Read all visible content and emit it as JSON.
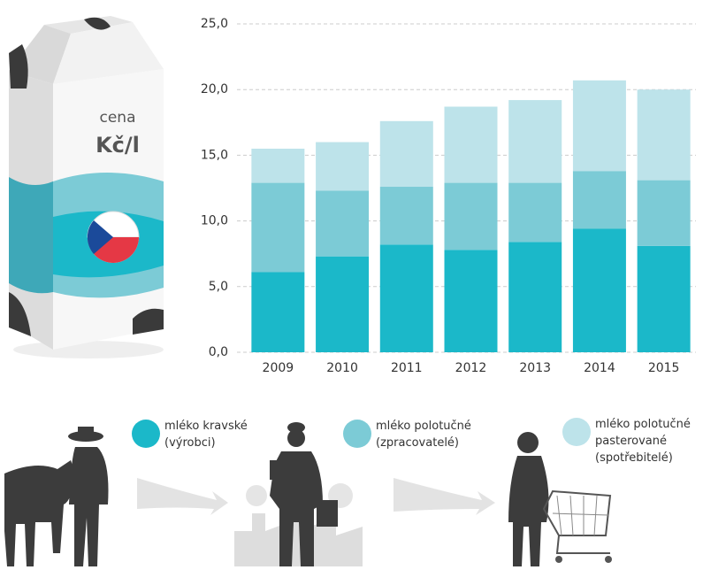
{
  "chart_data": {
    "type": "stacked_bar",
    "unit_top": "cena",
    "unit": "Kč/l",
    "categories": [
      "2009",
      "2010",
      "2011",
      "2012",
      "2013",
      "2014",
      "2015"
    ],
    "series": [
      {
        "name": "mléko kravské",
        "role": "(výrobci)",
        "color": "#1bb8c9",
        "values": [
          6.1,
          7.3,
          8.2,
          7.8,
          8.4,
          9.4,
          8.1
        ]
      },
      {
        "name": "mléko polotučné",
        "role": "(zpracovatelé)",
        "color": "#7ccbd6",
        "values": [
          6.8,
          5.0,
          4.4,
          5.1,
          4.5,
          4.4,
          5.0
        ]
      },
      {
        "name": "mléko polotučné pasterované",
        "role": "(spotřebitelé)",
        "color": "#bde3ea",
        "values": [
          2.6,
          3.7,
          5.0,
          5.8,
          6.3,
          6.9,
          6.9
        ]
      }
    ],
    "ylim": [
      0,
      25
    ],
    "yticks": [
      {
        "value": 0,
        "label": "0,0"
      },
      {
        "value": 5,
        "label": "5,0"
      },
      {
        "value": 10,
        "label": "10,0"
      },
      {
        "value": 15,
        "label": "15,0"
      },
      {
        "value": 20,
        "label": "20,0"
      },
      {
        "value": 25,
        "label": "25,0"
      }
    ],
    "grid": true
  }
}
